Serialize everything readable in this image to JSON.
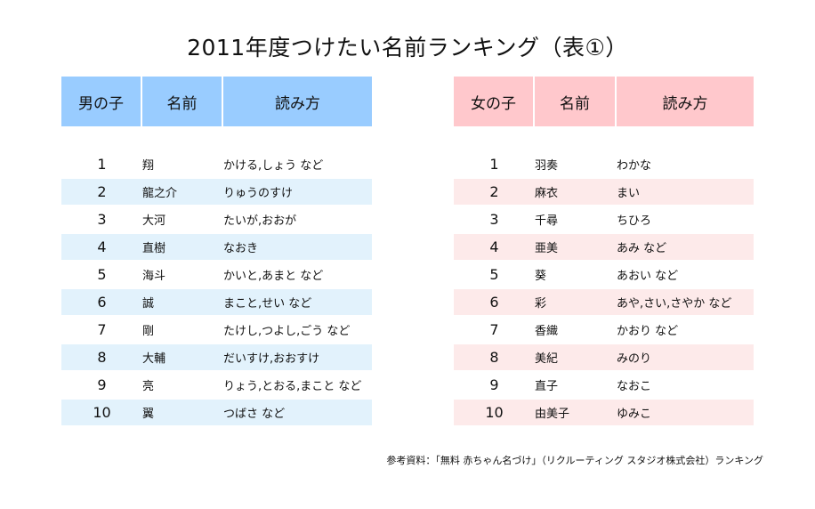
{
  "title": "2011年度つけたい名前ランキング（表①）",
  "boys": {
    "headers": [
      "男の子",
      "名前",
      "読み方"
    ],
    "rows": [
      {
        "rank": "1",
        "name": "翔",
        "reading": "かける,しょう など"
      },
      {
        "rank": "2",
        "name": "龍之介",
        "reading": "りゅうのすけ"
      },
      {
        "rank": "3",
        "name": "大河",
        "reading": "たいが,おおが"
      },
      {
        "rank": "4",
        "name": "直樹",
        "reading": "なおき"
      },
      {
        "rank": "5",
        "name": "海斗",
        "reading": "かいと,あまと など"
      },
      {
        "rank": "6",
        "name": "誠",
        "reading": "まこと,せい など"
      },
      {
        "rank": "7",
        "name": "剛",
        "reading": "たけし,つよし,ごう など"
      },
      {
        "rank": "8",
        "name": "大輔",
        "reading": "だいすけ,おおすけ"
      },
      {
        "rank": "9",
        "name": "亮",
        "reading": "りょう,とおる,まこと など"
      },
      {
        "rank": "10",
        "name": "翼",
        "reading": "つばさ など"
      }
    ]
  },
  "girls": {
    "headers": [
      "女の子",
      "名前",
      "読み方"
    ],
    "rows": [
      {
        "rank": "1",
        "name": "羽奏",
        "reading": "わかな"
      },
      {
        "rank": "2",
        "name": "麻衣",
        "reading": "まい"
      },
      {
        "rank": "3",
        "name": "千尋",
        "reading": "ちひろ"
      },
      {
        "rank": "4",
        "name": "亜美",
        "reading": "あみ など"
      },
      {
        "rank": "5",
        "name": "葵",
        "reading": "あおい など"
      },
      {
        "rank": "6",
        "name": "彩",
        "reading": "あや,さい,さやか など"
      },
      {
        "rank": "7",
        "name": "香織",
        "reading": "かおり など"
      },
      {
        "rank": "8",
        "name": "美紀",
        "reading": "みのり"
      },
      {
        "rank": "9",
        "name": "直子",
        "reading": "なおこ"
      },
      {
        "rank": "10",
        "name": "由美子",
        "reading": "ゆみこ"
      }
    ]
  },
  "source": "参考資料：「無料 赤ちゃん名づけ」（リクルーティング スタジオ株式会社）ランキング",
  "colors": {
    "boys_header": "#99ccff",
    "boys_stripe": "#e2f2fc",
    "girls_header": "#ffc8cc",
    "girls_stripe": "#fdeaea"
  }
}
